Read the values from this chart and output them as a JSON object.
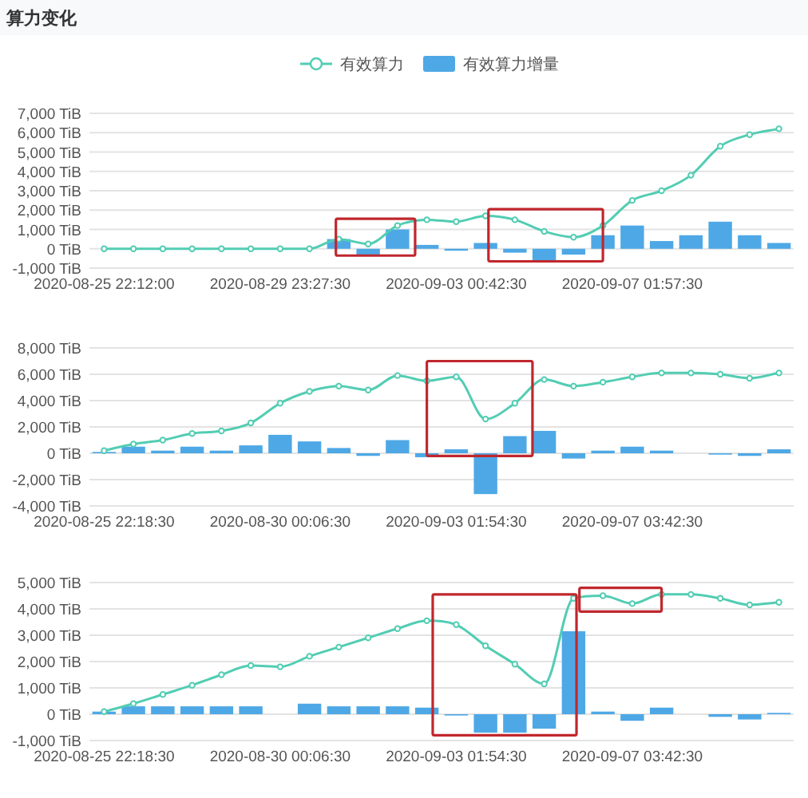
{
  "chart_data": [
    {
      "type": "bar",
      "title": "算力变化",
      "legend": "top",
      "grid": "y",
      "marker": "circle",
      "line_style": "solid",
      "categories": [
        "2020-08-25 22:12:00",
        null,
        null,
        null,
        null,
        null,
        "2020-08-29 23:27:30",
        null,
        null,
        null,
        null,
        null,
        "2020-09-03 00:42:30",
        null,
        null,
        null,
        null,
        null,
        "2020-09-07 01:57:30",
        null,
        null,
        null,
        null,
        null
      ],
      "ylim": [
        -1000,
        7000
      ],
      "yticks": [
        {
          "value": -1000,
          "label": "-1,000 TiB"
        },
        {
          "value": 0,
          "label": "0 TiB"
        },
        {
          "value": 1000,
          "label": "1,000 TiB"
        },
        {
          "value": 2000,
          "label": "2,000 TiB"
        },
        {
          "value": 3000,
          "label": "3,000 TiB"
        },
        {
          "value": 4000,
          "label": "4,000 TiB"
        },
        {
          "value": 5000,
          "label": "5,000 TiB"
        },
        {
          "value": 6000,
          "label": "6,000 TiB"
        },
        {
          "value": 7000,
          "label": "7,000 TiB"
        }
      ],
      "series": [
        {
          "name": "有效算力",
          "type": "line",
          "color": "#52cdb3",
          "values": [
            0,
            0,
            0,
            0,
            0,
            0,
            0,
            0,
            500,
            250,
            1200,
            1500,
            1400,
            1700,
            1500,
            900,
            600,
            1200,
            2500,
            3000,
            3800,
            5300,
            5900,
            6200
          ]
        },
        {
          "name": "有效算力增量",
          "color": "#4ea8e6",
          "values": [
            0,
            0,
            0,
            0,
            0,
            0,
            0,
            0,
            500,
            -300,
            1000,
            200,
            -100,
            300,
            -200,
            -600,
            -300,
            700,
            1200,
            400,
            700,
            1400,
            700,
            300
          ]
        }
      ]
    },
    {
      "type": "bar",
      "grid": "y",
      "marker": "circle",
      "line_style": "solid",
      "categories": [
        "2020-08-25 22:18:30",
        null,
        null,
        null,
        null,
        null,
        "2020-08-30 00:06:30",
        null,
        null,
        null,
        null,
        null,
        "2020-09-03 01:54:30",
        null,
        null,
        null,
        null,
        null,
        "2020-09-07 03:42:30",
        null,
        null,
        null,
        null,
        null
      ],
      "ylim": [
        -4000,
        8000
      ],
      "yticks": [
        {
          "value": -4000,
          "label": "-4,000 TiB"
        },
        {
          "value": -2000,
          "label": "-2,000 TiB"
        },
        {
          "value": 0,
          "label": "0 TiB"
        },
        {
          "value": 2000,
          "label": "2,000 TiB"
        },
        {
          "value": 4000,
          "label": "4,000 TiB"
        },
        {
          "value": 6000,
          "label": "6,000 TiB"
        },
        {
          "value": 8000,
          "label": "8,000 TiB"
        }
      ],
      "series": [
        {
          "type": "line",
          "color": "#52cdb3",
          "values": [
            200,
            700,
            1000,
            1500,
            1700,
            2300,
            3800,
            4700,
            5100,
            4800,
            5900,
            5500,
            5800,
            2600,
            3800,
            5600,
            5100,
            5400,
            5800,
            6100,
            6100,
            6000,
            5700,
            6100
          ]
        },
        {
          "color": "#4ea8e6",
          "values": [
            100,
            500,
            200,
            500,
            200,
            600,
            1400,
            900,
            400,
            -200,
            1000,
            -300,
            300,
            -3100,
            1300,
            1700,
            -400,
            200,
            500,
            200,
            0,
            -100,
            -200,
            300
          ]
        }
      ]
    },
    {
      "type": "bar",
      "grid": "y",
      "marker": "circle",
      "line_style": "solid",
      "categories": [
        "2020-08-25 22:18:30",
        null,
        null,
        null,
        null,
        null,
        "2020-08-30 00:06:30",
        null,
        null,
        null,
        null,
        null,
        "2020-09-03 01:54:30",
        null,
        null,
        null,
        null,
        null,
        "2020-09-07 03:42:30",
        null,
        null,
        null,
        null,
        null
      ],
      "ylim": [
        -1000,
        5000
      ],
      "yticks": [
        {
          "value": -1000,
          "label": "-1,000 TiB"
        },
        {
          "value": 0,
          "label": "0 TiB"
        },
        {
          "value": 1000,
          "label": "1,000 TiB"
        },
        {
          "value": 2000,
          "label": "2,000 TiB"
        },
        {
          "value": 3000,
          "label": "3,000 TiB"
        },
        {
          "value": 4000,
          "label": "4,000 TiB"
        },
        {
          "value": 5000,
          "label": "5,000 TiB"
        }
      ],
      "series": [
        {
          "type": "line",
          "color": "#52cdb3",
          "values": [
            100,
            400,
            750,
            1100,
            1500,
            1850,
            1800,
            2200,
            2550,
            2900,
            3250,
            3550,
            3400,
            2600,
            1900,
            1150,
            4400,
            4500,
            4200,
            4550,
            4550,
            4400,
            4150,
            4250
          ]
        },
        {
          "color": "#4ea8e6",
          "values": [
            100,
            300,
            300,
            300,
            300,
            300,
            0,
            400,
            300,
            300,
            300,
            250,
            -50,
            -700,
            -700,
            -550,
            3150,
            100,
            -250,
            250,
            0,
            -100,
            -200,
            50
          ]
        }
      ]
    }
  ]
}
